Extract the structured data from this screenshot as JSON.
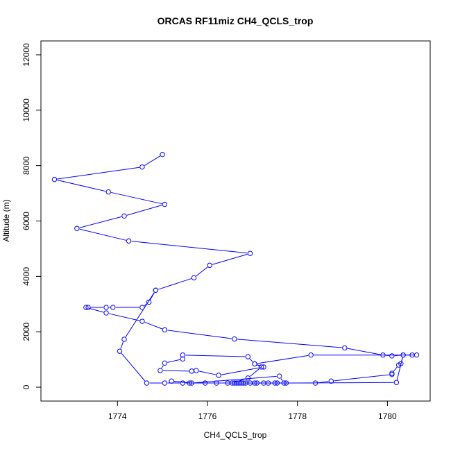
{
  "chart_data": {
    "type": "line",
    "title": "ORCAS RF11miz CH4_QCLS_trop",
    "xlabel": "CH4_QCLS_trop",
    "ylabel": "Altitude (m)",
    "xlim": [
      1772.3,
      1780.95
    ],
    "ylim": [
      -500,
      12500
    ],
    "x_ticks": [
      1774,
      1776,
      1778,
      1780
    ],
    "y_ticks": [
      0,
      2000,
      4000,
      6000,
      8000,
      10000,
      12000
    ],
    "grid": false,
    "legend": "none",
    "marker": "open-circle",
    "color": "#0000ff",
    "series": [
      {
        "points": [
          [
            1775.0,
            8400
          ],
          [
            1774.55,
            7950
          ],
          [
            1772.6,
            7500
          ],
          [
            1773.8,
            7050
          ],
          [
            1775.05,
            6600
          ],
          [
            1774.15,
            6180
          ],
          [
            1773.1,
            5730
          ],
          [
            1774.25,
            5280
          ],
          [
            1776.95,
            4830
          ],
          [
            1776.05,
            4400
          ],
          [
            1775.7,
            3950
          ],
          [
            1774.85,
            3500
          ],
          [
            1774.7,
            3070
          ],
          [
            1774.55,
            2880
          ],
          [
            1773.9,
            2880
          ],
          [
            1773.75,
            2880
          ],
          [
            1773.35,
            2880
          ],
          [
            1773.3,
            2880
          ],
          [
            1773.75,
            2680
          ],
          [
            1774.55,
            2380
          ],
          [
            1775.05,
            2070
          ],
          [
            1776.6,
            1740
          ],
          [
            1779.05,
            1420
          ],
          [
            1779.9,
            1160
          ],
          [
            1780.1,
            1130
          ],
          [
            1780.35,
            1160
          ],
          [
            1780.55,
            1160
          ],
          [
            1780.65,
            1160
          ],
          [
            1778.3,
            1160
          ],
          [
            1777.05,
            840
          ],
          [
            1777.25,
            730
          ],
          [
            1776.25,
            430
          ],
          [
            1775.75,
            600
          ],
          [
            1775.65,
            580
          ],
          [
            1774.95,
            600
          ],
          [
            1775.05,
            870
          ],
          [
            1775.45,
            1020
          ],
          [
            1775.45,
            1160
          ],
          [
            1776.9,
            1100
          ],
          [
            1777.05,
            840
          ],
          [
            1777.2,
            730
          ],
          [
            1776.9,
            330
          ],
          [
            1776.55,
            150
          ],
          [
            1776.8,
            150
          ],
          [
            1777.05,
            150
          ],
          [
            1777.7,
            150
          ],
          [
            1777.6,
            400
          ],
          [
            1775.65,
            150
          ],
          [
            1775.2,
            220
          ],
          [
            1775.6,
            150
          ],
          [
            1775.95,
            150
          ],
          [
            1776.45,
            150
          ],
          [
            1776.65,
            150
          ],
          [
            1776.75,
            150
          ],
          [
            1777.1,
            150
          ],
          [
            1777.35,
            150
          ],
          [
            1777.55,
            150
          ],
          [
            1778.4,
            150
          ],
          [
            1778.75,
            220
          ],
          [
            1780.1,
            460
          ],
          [
            1780.1,
            500
          ],
          [
            1780.25,
            800
          ],
          [
            1780.3,
            850
          ],
          [
            1780.35,
            1160
          ],
          [
            1780.2,
            170
          ],
          [
            1777.75,
            150
          ],
          [
            1777.5,
            150
          ],
          [
            1777.25,
            150
          ],
          [
            1776.95,
            150
          ],
          [
            1776.85,
            150
          ],
          [
            1776.7,
            150
          ],
          [
            1776.6,
            150
          ],
          [
            1776.2,
            150
          ],
          [
            1775.45,
            150
          ],
          [
            1775.05,
            150
          ],
          [
            1774.65,
            150
          ],
          [
            1774.05,
            1300
          ],
          [
            1774.15,
            1730
          ],
          [
            1774.85,
            3500
          ]
        ]
      }
    ]
  }
}
